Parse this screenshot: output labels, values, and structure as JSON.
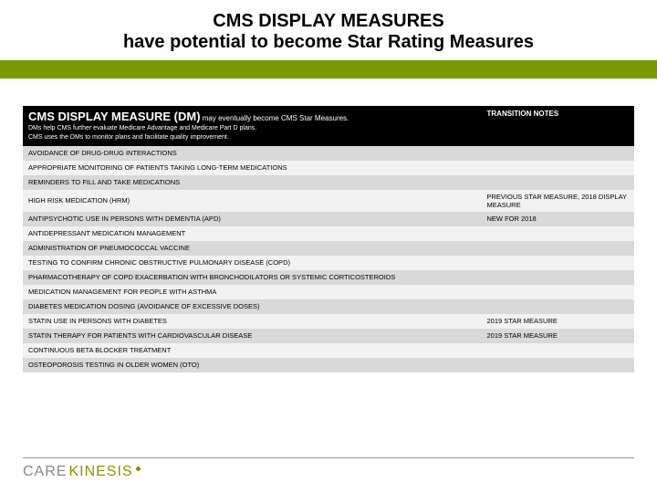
{
  "title": {
    "line1": "CMS DISPLAY MEASURES",
    "line2": "have potential to become Star Rating Measures"
  },
  "header": {
    "left_title": "CMS DISPLAY MEASURE (DM)",
    "left_sub": "may eventually become CMS Star Measures.",
    "left_desc1": "DMs help CMS further evaluate Medicare Advantage and Medicare Part D plans.",
    "left_desc2": "CMS uses the DMs to monitor plans and facilitate quality improvement.",
    "right_title": "TRANSITION NOTES"
  },
  "rows": [
    {
      "measure": "AVOIDANCE OF DRUG-DRUG INTERACTIONS",
      "note": ""
    },
    {
      "measure": "APPROPRIATE MONITORING OF PATIENTS TAKING LONG-TERM MEDICATIONS",
      "note": ""
    },
    {
      "measure": "REMINDERS TO FILL AND TAKE MEDICATIONS",
      "note": ""
    },
    {
      "measure": "HIGH RISK MEDICATION (HRM)",
      "note": "PREVIOUS STAR MEASURE, 2018 DISPLAY MEASURE"
    },
    {
      "measure": "ANTIPSYCHOTIC USE IN PERSONS WITH DEMENTIA (APD)",
      "note": "NEW FOR 2018"
    },
    {
      "measure": "ANTIDEPRESSANT MEDICATION MANAGEMENT",
      "note": ""
    },
    {
      "measure": "ADMINISTRATION OF PNEUMOCOCCAL VACCINE",
      "note": ""
    },
    {
      "measure": "TESTING TO CONFIRM CHRONIC OBSTRUCTIVE PULMONARY DISEASE (COPD)",
      "note": ""
    },
    {
      "measure": "PHARMACOTHERAPY OF COPD EXACERBATION WITH BRONCHODILATORS OR SYSTEMIC CORTICOSTEROIDS",
      "note": ""
    },
    {
      "measure": "MEDICATION MANAGEMENT FOR PEOPLE WITH ASTHMA",
      "note": ""
    },
    {
      "measure": "DIABETES MEDICATION DOSING (AVOIDANCE OF EXCESSIVE DOSES)",
      "note": ""
    },
    {
      "measure": "STATIN USE IN PERSONS WITH DIABETES",
      "note": "2019 STAR MEASURE"
    },
    {
      "measure": "STATIN THERAPY FOR PATIENTS WITH CARDIOVASCULAR DISEASE",
      "note": "2019 STAR MEASURE"
    },
    {
      "measure": "CONTINUOUS BETA BLOCKER TREATMENT",
      "note": ""
    },
    {
      "measure": "OSTEOPOROSIS TESTING IN OLDER WOMEN (OTO)",
      "note": ""
    }
  ],
  "colors": {
    "accent": "#7a9a01",
    "header_bg": "#000000",
    "row_even": "#d9d9d9",
    "row_odd": "#f2f2f2"
  },
  "logo": {
    "part1": "CARE",
    "part2": "KINESIS"
  }
}
